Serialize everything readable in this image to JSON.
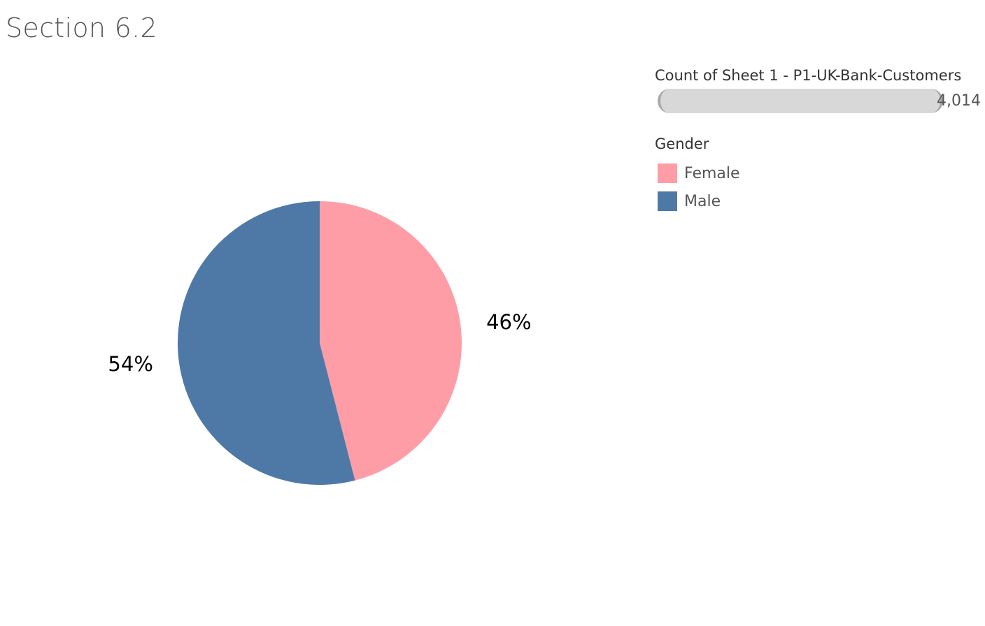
{
  "page": {
    "title": "Section 6.2"
  },
  "legend": {
    "size_title": "Count of Sheet 1 - P1-UK-Bank-Customers",
    "size_value_label": "4,014",
    "size_fraction": 1.0,
    "color_title": "Gender",
    "items": [
      {
        "label": "Female",
        "color": "#ff9da7"
      },
      {
        "label": "Male",
        "color": "#4e79a7"
      }
    ]
  },
  "chart_data": {
    "type": "pie",
    "title": "Section 6.2",
    "total_count": 4014,
    "slices": [
      {
        "label": "Female",
        "value": 46,
        "display": "46%",
        "color": "#ff9da7"
      },
      {
        "label": "Male",
        "value": 54,
        "display": "54%",
        "color": "#4e79a7"
      }
    ],
    "legend_placement": "top-right"
  }
}
